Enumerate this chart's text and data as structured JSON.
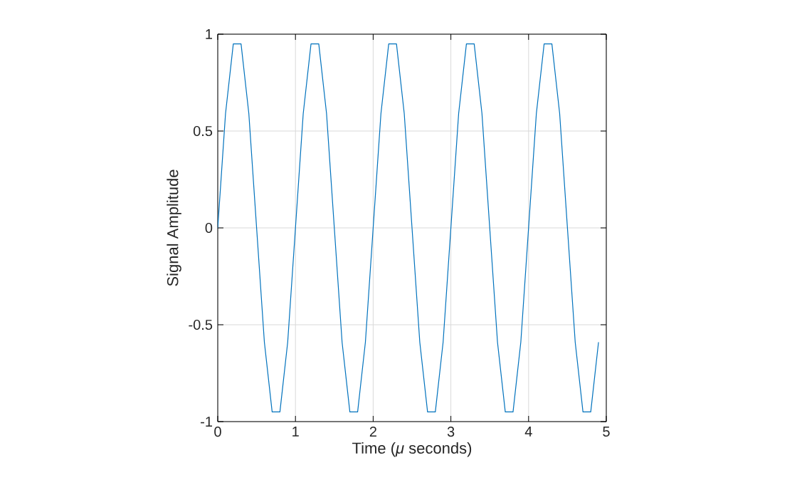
{
  "chart_data": {
    "type": "line",
    "xlabel": "Time (*μ* seconds)",
    "ylabel": "Signal Amplitude",
    "x": [
      0,
      0.1,
      0.2,
      0.3,
      0.4,
      0.5,
      0.6,
      0.7,
      0.8,
      0.9,
      1,
      1.1,
      1.2,
      1.3,
      1.4,
      1.5,
      1.6,
      1.7,
      1.8,
      1.9,
      2,
      2.1,
      2.2,
      2.3,
      2.4,
      2.5,
      2.6,
      2.7,
      2.8,
      2.9,
      3,
      3.1,
      3.2,
      3.3,
      3.4,
      3.5,
      3.6,
      3.7,
      3.8,
      3.9,
      4,
      4.1,
      4.2,
      4.3,
      4.4,
      4.5,
      4.6,
      4.7,
      4.8,
      4.9
    ],
    "series": [
      {
        "color": "#0072bd",
        "values": [
          0,
          0.59,
          0.95,
          0.95,
          0.59,
          0,
          -0.59,
          -0.95,
          -0.95,
          -0.59,
          0,
          0.59,
          0.95,
          0.95,
          0.59,
          0,
          -0.59,
          -0.95,
          -0.95,
          -0.59,
          0,
          0.59,
          0.95,
          0.95,
          0.59,
          0,
          -0.59,
          -0.95,
          -0.95,
          -0.59,
          0,
          0.59,
          0.95,
          0.95,
          0.59,
          0,
          -0.59,
          -0.95,
          -0.95,
          -0.59,
          0,
          0.59,
          0.95,
          0.95,
          0.59,
          0,
          -0.59,
          -0.95,
          -0.95,
          -0.59
        ]
      }
    ],
    "xlim": [
      0,
      5
    ],
    "ylim": [
      -1,
      1
    ],
    "xticks": [
      0,
      1,
      2,
      3,
      4,
      5
    ],
    "yticks": [
      -1,
      -0.5,
      0,
      0.5,
      1
    ],
    "grid": true,
    "marker": "none",
    "line_style": "solid"
  }
}
